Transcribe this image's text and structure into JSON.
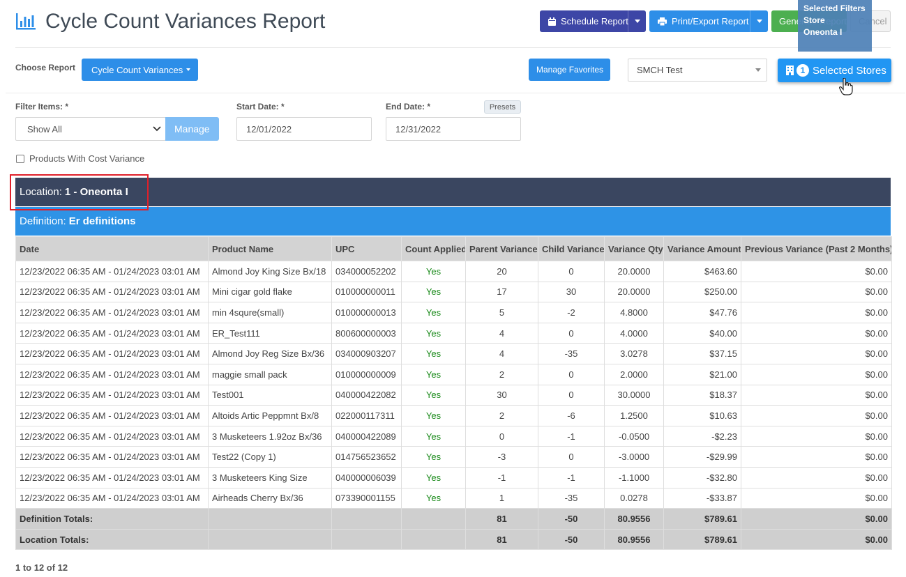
{
  "header": {
    "title": "Cycle Count Variances Report",
    "schedule_label": "Schedule Report",
    "print_label": "Print/Export Report",
    "generate_label": "Generate Report",
    "cancel_label": "Cancel"
  },
  "tooltip": {
    "heading": "Selected Filters",
    "label": "Store",
    "value": "Oneonta I"
  },
  "controls": {
    "choose_label": "Choose Report",
    "report_selected": "Cycle Count Variances",
    "manage_favorites": "Manage Favorites",
    "company_selected": "SMCH Test",
    "stores_count": "1",
    "stores_label": "Selected Stores"
  },
  "filters": {
    "filter_items_label": "Filter Items: *",
    "filter_items_value": "Show All",
    "manage_label": "Manage",
    "start_date_label": "Start Date: *",
    "start_date": "12/01/2022",
    "end_date_label": "End Date: *",
    "end_date": "12/31/2022",
    "presets_label": "Presets",
    "cost_variance_label": "Products With Cost Variance"
  },
  "location": {
    "prefix": "Location:",
    "name": "1 - Oneonta I"
  },
  "definition": {
    "prefix": "Definition:",
    "name": "Er definitions"
  },
  "table": {
    "columns": [
      "Date",
      "Product Name",
      "UPC",
      "Count Applied",
      "Parent Variance",
      "Child Variance",
      "Variance Qty",
      "Variance Amount",
      "Previous Variance (Past 2 Months)"
    ],
    "rows": [
      [
        "12/23/2022 06:35 AM - 01/24/2023 03:01 AM",
        "Almond Joy King Size Bx/18",
        "034000052202",
        "Yes",
        "20",
        "0",
        "20.0000",
        "$463.60",
        "$0.00"
      ],
      [
        "12/23/2022 06:35 AM - 01/24/2023 03:01 AM",
        "Mini cigar gold flake",
        "010000000011",
        "Yes",
        "17",
        "30",
        "20.0000",
        "$250.00",
        "$0.00"
      ],
      [
        "12/23/2022 06:35 AM - 01/24/2023 03:01 AM",
        "min 4squre(small)",
        "010000000013",
        "Yes",
        "5",
        "-2",
        "4.8000",
        "$47.76",
        "$0.00"
      ],
      [
        "12/23/2022 06:35 AM - 01/24/2023 03:01 AM",
        "ER_Test111",
        "800600000003",
        "Yes",
        "4",
        "0",
        "4.0000",
        "$40.00",
        "$0.00"
      ],
      [
        "12/23/2022 06:35 AM - 01/24/2023 03:01 AM",
        "Almond Joy Reg Size Bx/36",
        "034000903207",
        "Yes",
        "4",
        "-35",
        "3.0278",
        "$37.15",
        "$0.00"
      ],
      [
        "12/23/2022 06:35 AM - 01/24/2023 03:01 AM",
        "maggie small pack",
        "010000000009",
        "Yes",
        "2",
        "0",
        "2.0000",
        "$21.00",
        "$0.00"
      ],
      [
        "12/23/2022 06:35 AM - 01/24/2023 03:01 AM",
        "Test001",
        "040000422082",
        "Yes",
        "30",
        "0",
        "30.0000",
        "$18.37",
        "$0.00"
      ],
      [
        "12/23/2022 06:35 AM - 01/24/2023 03:01 AM",
        "Altoids Artic Peppmnt Bx/8",
        "022000117311",
        "Yes",
        "2",
        "-6",
        "1.2500",
        "$10.63",
        "$0.00"
      ],
      [
        "12/23/2022 06:35 AM - 01/24/2023 03:01 AM",
        "3 Musketeers 1.92oz Bx/36",
        "040000422089",
        "Yes",
        "0",
        "-1",
        "-0.0500",
        "-$2.23",
        "$0.00"
      ],
      [
        "12/23/2022 06:35 AM - 01/24/2023 03:01 AM",
        "Test22 (Copy 1)",
        "014756523652",
        "Yes",
        "-3",
        "0",
        "-3.0000",
        "-$29.99",
        "$0.00"
      ],
      [
        "12/23/2022 06:35 AM - 01/24/2023 03:01 AM",
        "3 Musketeers King Size",
        "040000006039",
        "Yes",
        "-1",
        "-1",
        "-1.1000",
        "-$32.80",
        "$0.00"
      ],
      [
        "12/23/2022 06:35 AM - 01/24/2023 03:01 AM",
        "Airheads Cherry Bx/36",
        "073390001155",
        "Yes",
        "1",
        "-35",
        "0.0278",
        "-$33.87",
        "$0.00"
      ]
    ],
    "totals": [
      [
        "Definition Totals:",
        "",
        "",
        "",
        "81",
        "-50",
        "80.9556",
        "$789.61",
        "$0.00"
      ],
      [
        "Location Totals:",
        "",
        "",
        "",
        "81",
        "-50",
        "80.9556",
        "$789.61",
        "$0.00"
      ]
    ]
  },
  "pager": {
    "text": "1 to 12 of 12"
  },
  "icons": {
    "title": "bar-chart-icon",
    "schedule": "calendar-icon",
    "print": "printer-icon",
    "stores": "building-icon"
  },
  "colors": {
    "schedule": "#3d46a6",
    "primary": "#2d8ee8",
    "generate": "#4caf50",
    "location_bar": "#3a4660",
    "definition_bar": "#2e93e6",
    "yes_text": "#1a8a1a",
    "highlight_box": "#e0202a"
  }
}
